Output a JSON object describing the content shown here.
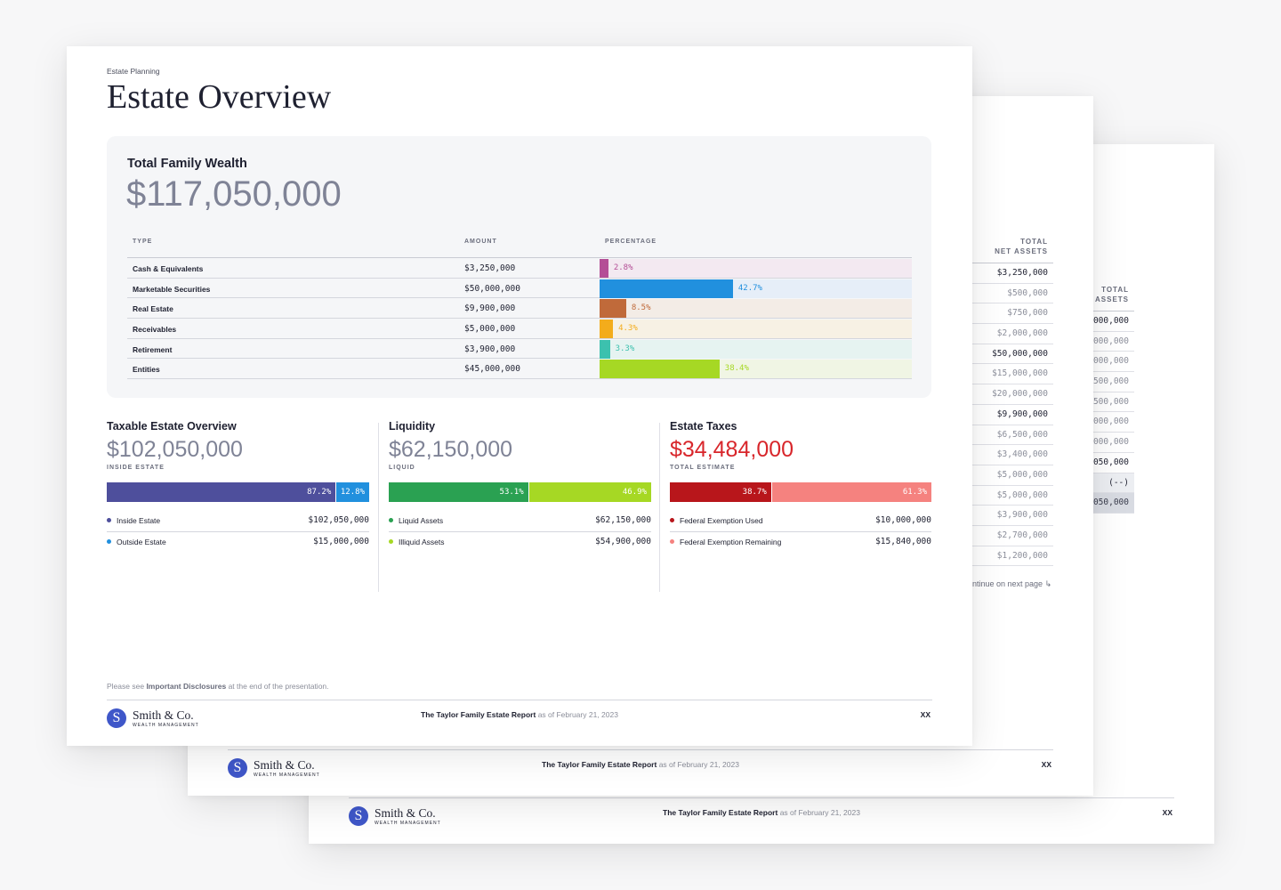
{
  "back_page_2": {
    "column": {
      "header_line1": "TOTAL",
      "header_line2": "NET ASSETS",
      "rows": [
        "$45,000,000",
        "$2,000,000",
        "$5,000,000",
        "$11,500,000",
        "$7,500,000",
        "$14,000,000",
        "$5,000,000",
        "$117,050,000",
        "(--)",
        "$117,050,000"
      ]
    },
    "footer": {
      "logo_name": "Smith & Co.",
      "logo_sub": "WEALTH MANAGEMENT",
      "report_title": "The Taylor Family Estate Report",
      "report_date": "as of February 21, 2023",
      "page": "XX"
    }
  },
  "back_page_1": {
    "column": {
      "header_line1": "TOTAL",
      "header_line2": "NET ASSETS",
      "rows": [
        "$3,250,000",
        "$500,000",
        "$750,000",
        "$2,000,000",
        "$50,000,000",
        "$15,000,000",
        "$20,000,000",
        "$9,900,000",
        "$6,500,000",
        "$3,400,000",
        "$5,000,000",
        "$5,000,000",
        "$3,900,000",
        "$2,700,000",
        "$1,200,000"
      ]
    },
    "continue_text": "ntinue on next page",
    "continue_glyph": "↳",
    "footer": {
      "logo_name": "Smith & Co.",
      "logo_sub": "WEALTH MANAGEMENT",
      "report_title": "The Taylor Family Estate Report",
      "report_date": "as of February 21, 2023",
      "page": "XX"
    }
  },
  "front_page": {
    "eyebrow": "Estate Planning",
    "title": "Estate Overview",
    "wealth": {
      "label": "Total Family Wealth",
      "value": "$117,050,000",
      "columns": {
        "type": "TYPE",
        "amount": "AMOUNT",
        "percentage": "PERCENTAGE"
      },
      "rows": [
        {
          "type": "Cash & Equivalents",
          "amount": "$3,250,000",
          "pct_label": "2.8%",
          "pct": 2.8,
          "color": "#b44e96",
          "bg": "#f3e9f1"
        },
        {
          "type": "Marketable Securities",
          "amount": "$50,000,000",
          "pct_label": "42.7%",
          "pct": 42.7,
          "color": "#2190de",
          "bg": "#e6eef8"
        },
        {
          "type": "Real Estate",
          "amount": "$9,900,000",
          "pct_label": "8.5%",
          "pct": 8.5,
          "color": "#c06a3a",
          "bg": "#f3ece6"
        },
        {
          "type": "Receivables",
          "amount": "$5,000,000",
          "pct_label": "4.3%",
          "pct": 4.3,
          "color": "#f3ac1b",
          "bg": "#f7f1e4"
        },
        {
          "type": "Retirement",
          "amount": "$3,900,000",
          "pct_label": "3.3%",
          "pct": 3.3,
          "color": "#3cc1ae",
          "bg": "#e6f3f1"
        },
        {
          "type": "Entities",
          "amount": "$45,000,000",
          "pct_label": "38.4%",
          "pct": 38.4,
          "color": "#a6d824",
          "bg": "#f0f5e4"
        }
      ]
    },
    "sections": [
      {
        "title": "Taxable Estate Overview",
        "value": "$102,050,000",
        "sublabel": "INSIDE ESTATE",
        "segments": [
          {
            "label": "87.2%",
            "pct": 87.2,
            "color": "#4e4f9c"
          },
          {
            "label": "12.8%",
            "pct": 12.8,
            "color": "#2190de"
          }
        ],
        "legend": [
          {
            "label": "Inside Estate",
            "value": "$102,050,000",
            "color": "#4e4f9c"
          },
          {
            "label": "Outside Estate",
            "value": "$15,000,000",
            "color": "#2190de"
          }
        ]
      },
      {
        "title": "Liquidity",
        "value": "$62,150,000",
        "sublabel": "LIQUID",
        "segments": [
          {
            "label": "53.1%",
            "pct": 53.1,
            "color": "#2aa152"
          },
          {
            "label": "46.9%",
            "pct": 46.9,
            "color": "#a6d824"
          }
        ],
        "legend": [
          {
            "label": "Liquid Assets",
            "value": "$62,150,000",
            "color": "#2aa152"
          },
          {
            "label": "Illiquid Assets",
            "value": "$54,900,000",
            "color": "#a6d824"
          }
        ]
      },
      {
        "title": "Estate Taxes",
        "value": "$34,484,000",
        "sublabel": "TOTAL ESTIMATE",
        "segments": [
          {
            "label": "38.7%",
            "pct": 38.7,
            "color": "#b8161b"
          },
          {
            "label": "61.3%",
            "pct": 61.3,
            "color": "#f5827f"
          }
        ],
        "legend": [
          {
            "label": "Federal Exemption Used",
            "value": "$10,000,000",
            "color": "#b8161b"
          },
          {
            "label": "Federal Exemption Remaining",
            "value": "$15,840,000",
            "color": "#f5827f"
          }
        ]
      }
    ],
    "disclaimer": {
      "pre": "Please see",
      "link": "Important Disclosures",
      "post": "at the end of the presentation."
    },
    "footer": {
      "logo_initial": "S",
      "logo_name": "Smith & Co.",
      "logo_sub": "WEALTH MANAGEMENT",
      "report_title": "The Taylor Family Estate Report",
      "report_date": "as of February 21, 2023",
      "page": "XX"
    }
  }
}
